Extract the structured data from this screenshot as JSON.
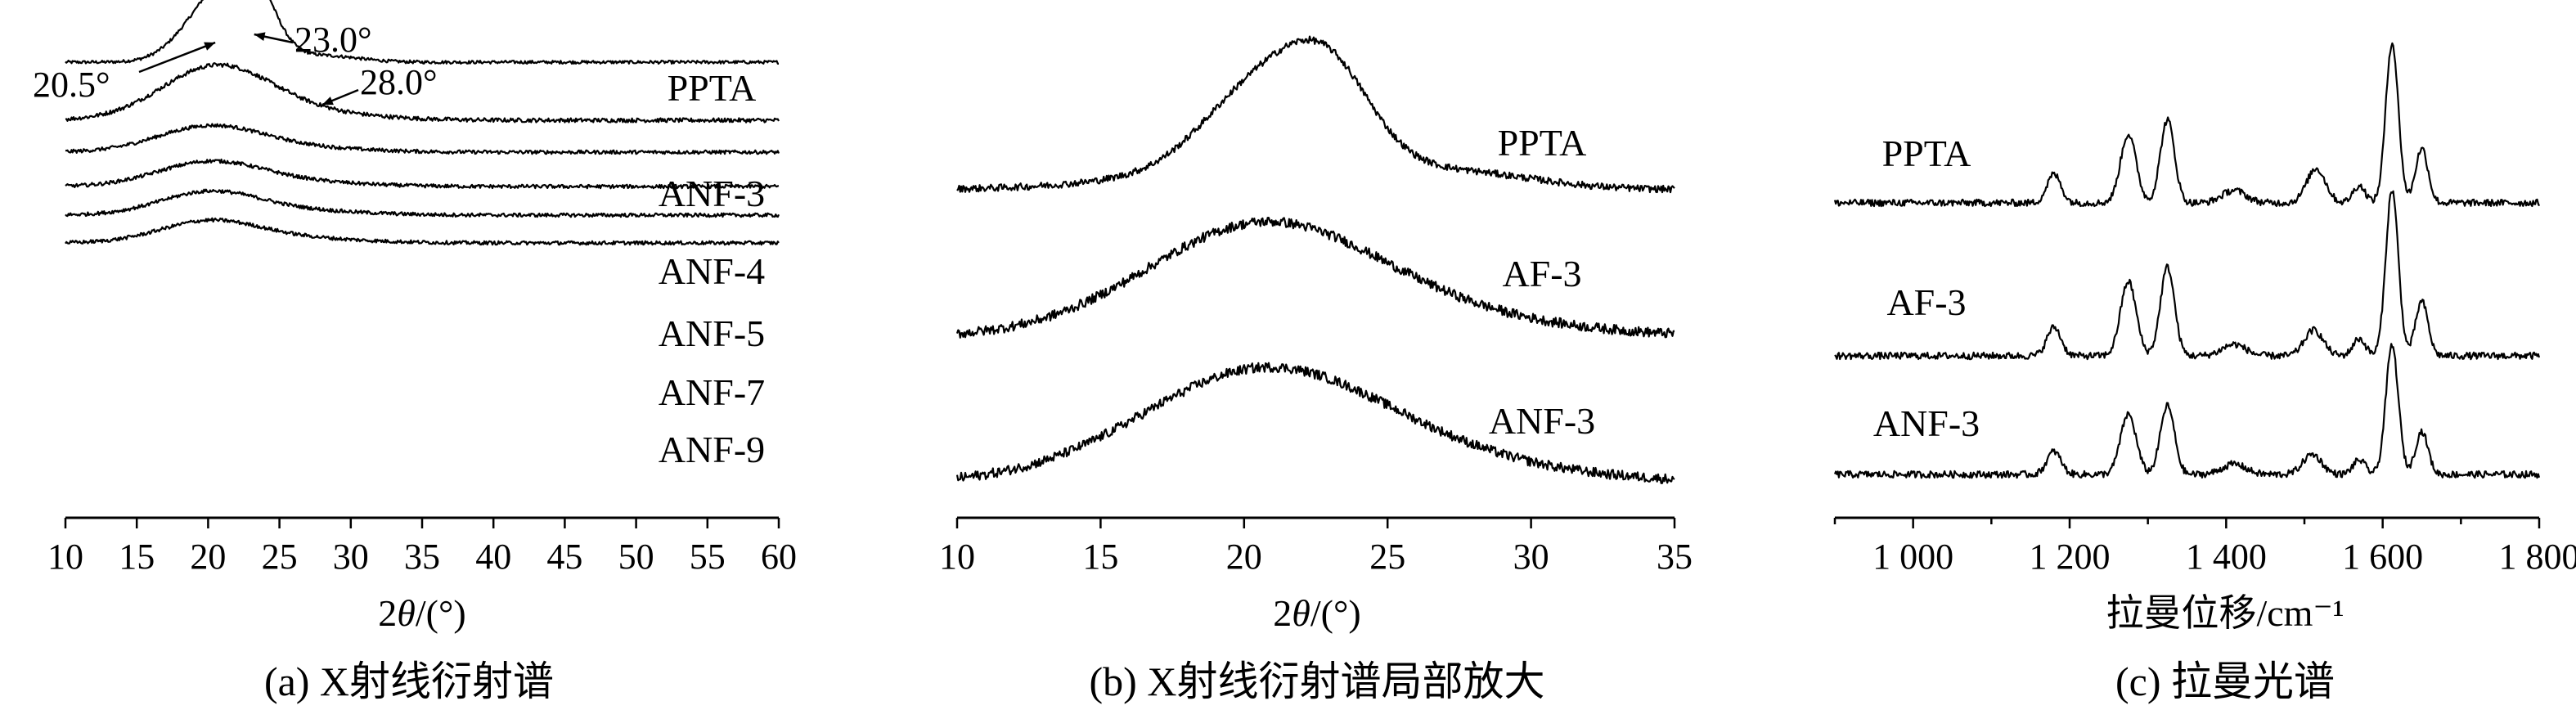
{
  "chart_data": [
    {
      "type": "line",
      "panel": "a",
      "caption": "(a) X射线衍射谱",
      "xlabel_prefix": "2",
      "xlabel_symbol": "θ",
      "xlabel_suffix": "/(°)",
      "ylabel": "",
      "xlim": [
        10,
        60
      ],
      "xticks": [
        "10",
        "15",
        "20",
        "25",
        "30",
        "35",
        "40",
        "45",
        "50",
        "55",
        "60"
      ],
      "series": [
        {
          "name": "PPTA",
          "baseline": 0.0,
          "peaks": [
            [
              20.5,
              2.3,
              2.2
            ],
            [
              23.0,
              2.6,
              1.6
            ],
            [
              28.0,
              0.25,
              2.5
            ]
          ],
          "noise": 0.06
        },
        {
          "name": "ANF-3",
          "baseline": -1.4,
          "peaks": [
            [
              20.5,
              1.95,
              3.8
            ],
            [
              26.0,
              0.3,
              5.0
            ]
          ],
          "noise": 0.08
        },
        {
          "name": "ANF-4",
          "baseline": -2.45,
          "peaks": [
            [
              20.0,
              0.9,
              3.6
            ],
            [
              25.0,
              0.2,
              5.0
            ]
          ],
          "noise": 0.07
        },
        {
          "name": "ANF-5",
          "baseline": -3.3,
          "peaks": [
            [
              20.0,
              0.85,
              3.6
            ],
            [
              25.0,
              0.2,
              5.0
            ]
          ],
          "noise": 0.07
        },
        {
          "name": "ANF-7",
          "baseline": -4.1,
          "peaks": [
            [
              20.0,
              0.8,
              3.4
            ],
            [
              25.0,
              0.2,
              5.0
            ]
          ],
          "noise": 0.07
        },
        {
          "name": "ANF-9",
          "baseline": -4.95,
          "peaks": [
            [
              20.0,
              0.75,
              3.4
            ],
            [
              25.0,
              0.2,
              5.0
            ]
          ],
          "noise": 0.07
        }
      ],
      "annotations": [
        {
          "text": "20.5°",
          "x": 20.5
        },
        {
          "text": "23.0°",
          "x": 23.0
        },
        {
          "text": "28.0°",
          "x": 28.0
        }
      ]
    },
    {
      "type": "line",
      "panel": "b",
      "caption": "(b) X射线衍射谱局部放大",
      "xlabel_prefix": "2",
      "xlabel_symbol": "θ",
      "xlabel_suffix": "/(°)",
      "ylabel": "",
      "xlim": [
        10,
        35
      ],
      "xticks": [
        "10",
        "15",
        "20",
        "25",
        "30",
        "35"
      ],
      "series": [
        {
          "name": "PPTA",
          "baseline": 0.0,
          "peaks": [
            [
              20.5,
              1.6,
              1.9
            ],
            [
              23.0,
              1.7,
              1.5
            ],
            [
              21.5,
              0.5,
              4.5
            ],
            [
              28.0,
              0.2,
              2.5
            ]
          ],
          "noise": 0.07
        },
        {
          "name": "AF-3",
          "baseline": -3.0,
          "peaks": [
            [
              20.5,
              2.1,
              4.0
            ],
            [
              25.5,
              0.4,
              5.0
            ]
          ],
          "noise": 0.1
        },
        {
          "name": "ANF-3",
          "baseline": -6.0,
          "peaks": [
            [
              20.5,
              2.1,
              4.2
            ],
            [
              25.5,
              0.4,
              5.0
            ]
          ],
          "noise": 0.1
        }
      ]
    },
    {
      "type": "line",
      "panel": "c",
      "caption": "(c) 拉曼光谱",
      "xlabel": "拉曼位移/cm⁻¹",
      "ylabel": "",
      "xlim": [
        900,
        1800
      ],
      "xticks": [
        "1 000",
        "1 200",
        "1 400",
        "1 600",
        "1 800"
      ],
      "xtick_values": [
        1000,
        1200,
        1400,
        1600,
        1800
      ],
      "series": [
        {
          "name": "PPTA",
          "baseline": 0.0,
          "peaks": [
            [
              1180,
              0.5,
              9
            ],
            [
              1275,
              1.2,
              10
            ],
            [
              1325,
              1.45,
              9
            ],
            [
              1410,
              0.22,
              15
            ],
            [
              1515,
              0.6,
              12
            ],
            [
              1570,
              0.3,
              8
            ],
            [
              1612,
              2.8,
              8
            ],
            [
              1650,
              0.95,
              8
            ]
          ],
          "noise": 0.06
        },
        {
          "name": "AF-3",
          "baseline": -2.6,
          "peaks": [
            [
              1180,
              0.5,
              9
            ],
            [
              1275,
              1.3,
              10
            ],
            [
              1325,
              1.55,
              9
            ],
            [
              1410,
              0.2,
              15
            ],
            [
              1512,
              0.45,
              12
            ],
            [
              1570,
              0.3,
              8
            ],
            [
              1612,
              2.9,
              8
            ],
            [
              1650,
              0.95,
              8
            ]
          ],
          "noise": 0.06
        },
        {
          "name": "ANF-3",
          "baseline": -5.0,
          "peaks": [
            [
              1180,
              0.4,
              9
            ],
            [
              1275,
              1.05,
              10
            ],
            [
              1325,
              1.2,
              9
            ],
            [
              1410,
              0.18,
              15
            ],
            [
              1510,
              0.35,
              12
            ],
            [
              1570,
              0.25,
              8
            ],
            [
              1612,
              2.25,
              8
            ],
            [
              1650,
              0.75,
              8
            ]
          ],
          "noise": 0.06
        }
      ]
    }
  ]
}
